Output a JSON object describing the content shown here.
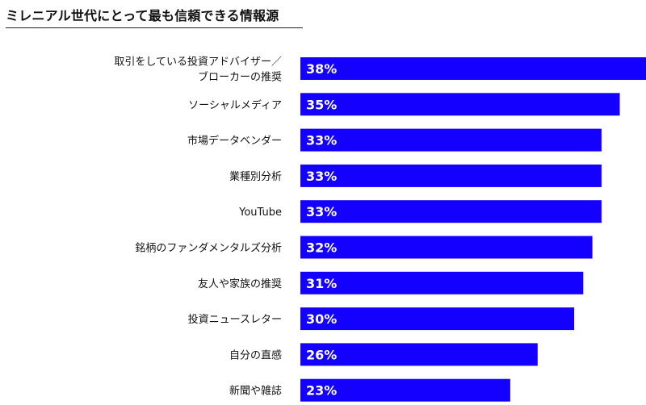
{
  "page": {
    "title": "ミレニアル世代にとって最も信頼できる情報源"
  },
  "chart_data": {
    "type": "bar",
    "orientation": "horizontal",
    "title": "ミレニアル世代にとって最も信頼できる情報源",
    "categories": [
      [
        "取引をしている投資アドバイザー／",
        "ブローカーの推奨"
      ],
      [
        "ソーシャルメディア"
      ],
      [
        "市場データベンダー"
      ],
      [
        "業種別分析"
      ],
      [
        "YouTube"
      ],
      [
        "銘柄のファンダメンタルズ分析"
      ],
      [
        "友人や家族の推奨"
      ],
      [
        "投資ニュースレター"
      ],
      [
        "自分の直感"
      ],
      [
        "新聞や雑誌"
      ]
    ],
    "values": [
      38,
      35,
      33,
      33,
      33,
      32,
      31,
      30,
      26,
      23
    ],
    "value_labels": [
      "38%",
      "35%",
      "33%",
      "33%",
      "33%",
      "32%",
      "31%",
      "30%",
      "26%",
      "23%"
    ],
    "bar_color": "#1400ff",
    "value_label_color": "#ffffff",
    "grid": false,
    "legend": "none"
  }
}
